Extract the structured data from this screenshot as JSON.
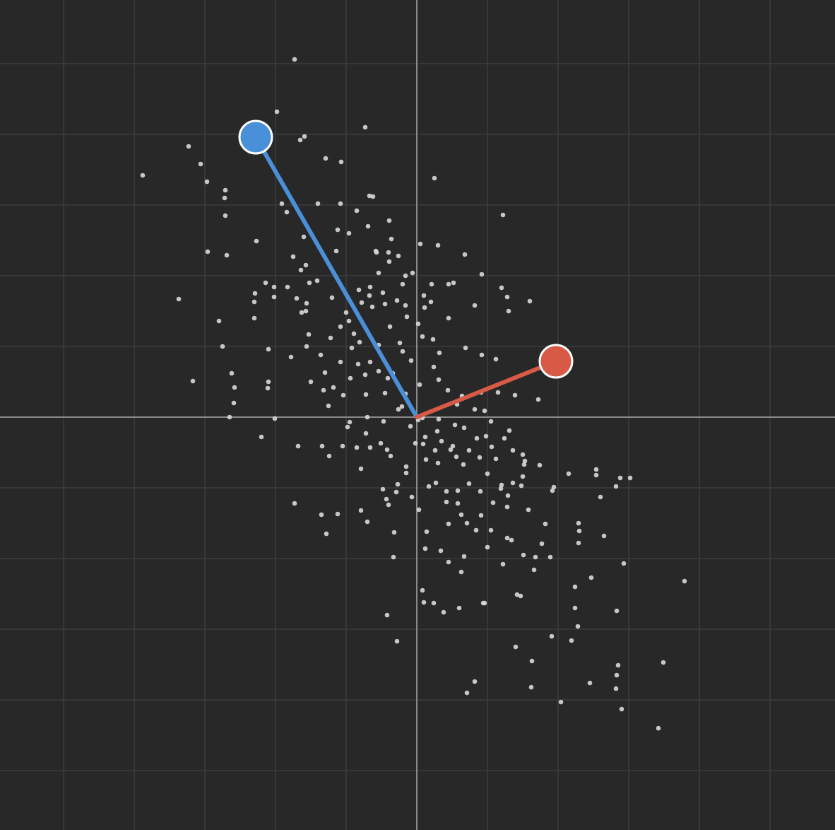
{
  "canvas": {
    "background": "#282828",
    "grid_color": "#3c3c3c",
    "axis_color": "#8a8a8a",
    "point_color": "#d8d8d8"
  },
  "chart_data": {
    "type": "scatter",
    "title": "",
    "xlabel": "",
    "ylabel": "",
    "xlim": [
      -5.9,
      5.92
    ],
    "ylim": [
      -5.84,
      5.9
    ],
    "grid": true,
    "grid_step": 1,
    "axes_through_origin": true,
    "vectors": [
      {
        "color": "#4a90d9",
        "tip": [
          -2.28,
          3.96
        ]
      },
      {
        "color": "#d65a45",
        "tip": [
          1.97,
          0.79
        ]
      }
    ],
    "points": [
      [
        -1.73,
        5.06
      ],
      [
        -1.98,
        4.32
      ],
      [
        -0.73,
        4.1
      ],
      [
        -1.65,
        3.92
      ],
      [
        -1.59,
        3.97
      ],
      [
        -3.23,
        3.83
      ],
      [
        -1.29,
        3.66
      ],
      [
        -1.07,
        3.61
      ],
      [
        -3.06,
        3.58
      ],
      [
        -3.88,
        3.42
      ],
      [
        0.25,
        3.38
      ],
      [
        -2.97,
        3.33
      ],
      [
        -2.71,
        3.21
      ],
      [
        -2.72,
        3.1
      ],
      [
        -0.62,
        3.12
      ],
      [
        -0.67,
        3.13
      ],
      [
        -1.91,
        3.02
      ],
      [
        -1.4,
        3.02
      ],
      [
        -1.08,
        3.02
      ],
      [
        -0.85,
        2.92
      ],
      [
        -2.71,
        2.85
      ],
      [
        -1.84,
        2.9
      ],
      [
        1.22,
        2.86
      ],
      [
        -0.39,
        2.78
      ],
      [
        -0.69,
        2.7
      ],
      [
        -1.12,
        2.65
      ],
      [
        -0.96,
        2.6
      ],
      [
        -1.6,
        2.55
      ],
      [
        -2.27,
        2.49
      ],
      [
        -0.36,
        2.52
      ],
      [
        0.05,
        2.45
      ],
      [
        0.3,
        2.43
      ],
      [
        -0.57,
        2.33
      ],
      [
        -2.96,
        2.34
      ],
      [
        -2.69,
        2.29
      ],
      [
        -1.14,
        2.35
      ],
      [
        -0.58,
        2.35
      ],
      [
        -0.4,
        2.33
      ],
      [
        -0.26,
        2.28
      ],
      [
        0.68,
        2.3
      ],
      [
        -1.75,
        2.27
      ],
      [
        -0.39,
        2.2
      ],
      [
        -1.57,
        2.15
      ],
      [
        -1.64,
        2.08
      ],
      [
        -0.54,
        2.04
      ],
      [
        -0.16,
        2.0
      ],
      [
        0.92,
        2.02
      ],
      [
        -0.06,
        2.04
      ],
      [
        -1.41,
        1.93
      ],
      [
        -1.83,
        1.84
      ],
      [
        -2.14,
        1.9
      ],
      [
        -1.52,
        1.9
      ],
      [
        -0.2,
        1.88
      ],
      [
        0.21,
        1.88
      ],
      [
        -2.02,
        1.84
      ],
      [
        -0.66,
        1.84
      ],
      [
        -0.82,
        1.8
      ],
      [
        0.45,
        1.88
      ],
      [
        0.52,
        1.9
      ],
      [
        1.2,
        1.83
      ],
      [
        -2.29,
        1.75
      ],
      [
        -0.48,
        1.76
      ],
      [
        -2.02,
        1.7
      ],
      [
        -0.67,
        1.72
      ],
      [
        -1.2,
        1.69
      ],
      [
        -0.28,
        1.65
      ],
      [
        -0.16,
        1.58
      ],
      [
        1.28,
        1.7
      ],
      [
        -2.3,
        1.63
      ],
      [
        -1.7,
        1.68
      ],
      [
        -1.56,
        1.61
      ],
      [
        -0.78,
        1.62
      ],
      [
        0.2,
        1.63
      ],
      [
        0.1,
        1.72
      ],
      [
        -0.63,
        1.56
      ],
      [
        -0.45,
        1.6
      ],
      [
        0.11,
        1.55
      ],
      [
        1.6,
        1.64
      ],
      [
        -1.57,
        1.5
      ],
      [
        -1.0,
        1.48
      ],
      [
        -0.14,
        1.42
      ],
      [
        0.45,
        1.4
      ],
      [
        1.3,
        1.5
      ],
      [
        -3.37,
        1.67
      ],
      [
        -2.3,
        1.4
      ],
      [
        -1.63,
        1.48
      ],
      [
        -0.96,
        1.36
      ],
      [
        0.02,
        1.32
      ],
      [
        0.82,
        1.58
      ],
      [
        -2.8,
        1.36
      ],
      [
        -1.08,
        1.28
      ],
      [
        -0.38,
        1.28
      ],
      [
        -1.53,
        1.17
      ],
      [
        -0.89,
        1.18
      ],
      [
        0.08,
        1.14
      ],
      [
        -1.22,
        1.12
      ],
      [
        -0.81,
        1.06
      ],
      [
        -0.24,
        1.05
      ],
      [
        0.23,
        1.1
      ],
      [
        -1.56,
        1.0
      ],
      [
        -0.54,
        1.02
      ],
      [
        0.69,
        0.98
      ],
      [
        -2.1,
        0.96
      ],
      [
        -0.92,
        0.98
      ],
      [
        -0.2,
        0.93
      ],
      [
        -1.36,
        0.88
      ],
      [
        0.32,
        0.91
      ],
      [
        -2.75,
        1.0
      ],
      [
        -1.78,
        0.85
      ],
      [
        -1.08,
        0.78
      ],
      [
        -0.66,
        0.78
      ],
      [
        -0.08,
        0.8
      ],
      [
        0.24,
        0.71
      ],
      [
        -0.83,
        0.75
      ],
      [
        0.92,
        0.88
      ],
      [
        1.12,
        0.82
      ],
      [
        -1.3,
        0.63
      ],
      [
        -0.54,
        0.65
      ],
      [
        -0.34,
        0.62
      ],
      [
        -0.94,
        0.55
      ],
      [
        -0.73,
        0.6
      ],
      [
        -2.62,
        0.62
      ],
      [
        -2.1,
        0.5
      ],
      [
        0.31,
        0.53
      ],
      [
        -1.5,
        0.5
      ],
      [
        -1.18,
        0.42
      ],
      [
        0.04,
        0.46
      ],
      [
        1.72,
        0.25
      ],
      [
        -2.58,
        0.42
      ],
      [
        -2.11,
        0.41
      ],
      [
        -1.32,
        0.38
      ],
      [
        0.44,
        0.38
      ],
      [
        0.91,
        0.35
      ],
      [
        -0.72,
        0.32
      ],
      [
        -0.45,
        0.34
      ],
      [
        -0.16,
        0.33
      ],
      [
        0.64,
        0.3
      ],
      [
        1.39,
        0.31
      ],
      [
        -3.17,
        0.51
      ],
      [
        -0.41,
        0.55
      ],
      [
        -2.59,
        0.2
      ],
      [
        -1.25,
        0.16
      ],
      [
        -0.21,
        0.15
      ],
      [
        0.57,
        0.18
      ],
      [
        0.82,
        0.11
      ],
      [
        1.15,
        0.35
      ],
      [
        -1.04,
        0.31
      ],
      [
        -2.65,
        0.0
      ],
      [
        -2.01,
        -0.02
      ],
      [
        -0.7,
        0.0
      ],
      [
        -0.26,
        0.11
      ],
      [
        0.08,
        -0.01
      ],
      [
        0.31,
        -0.03
      ],
      [
        0.96,
        0.09
      ],
      [
        -0.95,
        -0.07
      ],
      [
        -0.47,
        -0.06
      ],
      [
        0.02,
        -0.04
      ],
      [
        0.54,
        -0.11
      ],
      [
        -0.98,
        -0.14
      ],
      [
        1.05,
        -0.06
      ],
      [
        -0.09,
        -0.13
      ],
      [
        0.29,
        -0.2
      ],
      [
        0.67,
        -0.15
      ],
      [
        -0.72,
        -0.23
      ],
      [
        0.12,
        -0.28
      ],
      [
        0.85,
        -0.3
      ],
      [
        0.98,
        -0.27
      ],
      [
        1.31,
        -0.19
      ],
      [
        -2.2,
        -0.28
      ],
      [
        -1.05,
        -0.41
      ],
      [
        -0.51,
        -0.37
      ],
      [
        0.09,
        -0.38
      ],
      [
        0.51,
        -0.41
      ],
      [
        1.06,
        -0.42
      ],
      [
        -1.34,
        -0.41
      ],
      [
        -0.42,
        -0.46
      ],
      [
        -0.02,
        -0.37
      ],
      [
        0.35,
        -0.34
      ],
      [
        1.24,
        -0.3
      ],
      [
        -1.68,
        -0.41
      ],
      [
        -0.85,
        -0.43
      ],
      [
        -0.66,
        -0.43
      ],
      [
        0.26,
        -0.47
      ],
      [
        0.48,
        -0.46
      ],
      [
        0.74,
        -0.47
      ],
      [
        1.36,
        -0.47
      ],
      [
        1.5,
        -0.53
      ],
      [
        -1.24,
        -0.55
      ],
      [
        -0.37,
        -0.55
      ],
      [
        0.13,
        -0.6
      ],
      [
        0.56,
        -0.56
      ],
      [
        0.89,
        -0.57
      ],
      [
        1.53,
        -0.62
      ],
      [
        1.74,
        -0.68
      ],
      [
        -0.15,
        -0.7
      ],
      [
        0.3,
        -0.65
      ],
      [
        0.66,
        -0.67
      ],
      [
        1.12,
        -0.59
      ],
      [
        1.52,
        -0.67
      ],
      [
        -0.79,
        -0.73
      ],
      [
        -0.15,
        -0.79
      ],
      [
        1.0,
        -0.8
      ],
      [
        1.5,
        -0.84
      ],
      [
        2.15,
        -0.8
      ],
      [
        2.54,
        -0.74
      ],
      [
        2.54,
        -0.82
      ],
      [
        2.88,
        -0.86
      ],
      [
        3.02,
        -0.86
      ],
      [
        -0.27,
        -0.95
      ],
      [
        0.27,
        -0.93
      ],
      [
        0.74,
        -0.94
      ],
      [
        1.48,
        -0.97
      ],
      [
        2.82,
        -0.98
      ],
      [
        -0.48,
        -1.02
      ],
      [
        0.17,
        -0.98
      ],
      [
        0.42,
        -1.05
      ],
      [
        1.2,
        -0.96
      ],
      [
        1.36,
        -0.93
      ],
      [
        1.94,
        -0.99
      ],
      [
        1.19,
        -1.01
      ],
      [
        -0.29,
        -1.06
      ],
      [
        -0.07,
        -1.13
      ],
      [
        0.58,
        -1.04
      ],
      [
        0.9,
        -1.05
      ],
      [
        1.29,
        -1.11
      ],
      [
        1.92,
        -1.04
      ],
      [
        2.6,
        -1.13
      ],
      [
        -0.43,
        -1.16
      ],
      [
        0.42,
        -1.2
      ],
      [
        0.58,
        -1.22
      ],
      [
        1.08,
        -1.21
      ],
      [
        1.58,
        -1.31
      ],
      [
        -1.35,
        -1.38
      ],
      [
        -1.12,
        -1.37
      ],
      [
        -0.4,
        -1.24
      ],
      [
        -0.79,
        -1.32
      ],
      [
        0.03,
        -1.31
      ],
      [
        0.63,
        -1.38
      ],
      [
        0.91,
        -1.39
      ],
      [
        1.28,
        -1.27
      ],
      [
        -1.73,
        -1.22
      ],
      [
        -0.7,
        -1.48
      ],
      [
        0.45,
        -1.51
      ],
      [
        0.71,
        -1.5
      ],
      [
        1.82,
        -1.51
      ],
      [
        2.29,
        -1.5
      ],
      [
        2.3,
        -1.61
      ],
      [
        -1.28,
        -1.65
      ],
      [
        -0.32,
        -1.63
      ],
      [
        0.14,
        -1.62
      ],
      [
        0.84,
        -1.6
      ],
      [
        1.05,
        -1.6
      ],
      [
        1.28,
        -1.71
      ],
      [
        2.65,
        -1.68
      ],
      [
        2.29,
        -1.78
      ],
      [
        0.12,
        -1.86
      ],
      [
        0.34,
        -1.89
      ],
      [
        1.0,
        -1.84
      ],
      [
        1.34,
        -1.74
      ],
      [
        1.77,
        -1.79
      ],
      [
        -0.33,
        -1.98
      ],
      [
        0.45,
        -2.05
      ],
      [
        0.67,
        -1.97
      ],
      [
        1.51,
        -1.95
      ],
      [
        1.68,
        -1.98
      ],
      [
        1.89,
        -1.98
      ],
      [
        2.93,
        -2.07
      ],
      [
        1.22,
        -2.08
      ],
      [
        0.63,
        -2.19
      ],
      [
        1.66,
        -2.16
      ],
      [
        2.24,
        -2.4
      ],
      [
        2.47,
        -2.27
      ],
      [
        3.79,
        -2.32
      ],
      [
        0.08,
        -2.45
      ],
      [
        0.1,
        -2.62
      ],
      [
        1.42,
        -2.51
      ],
      [
        1.47,
        -2.53
      ],
      [
        0.24,
        -2.63
      ],
      [
        0.6,
        -2.7
      ],
      [
        2.24,
        -2.7
      ],
      [
        0.38,
        -2.76
      ],
      [
        0.94,
        -2.63
      ],
      [
        0.96,
        -2.63
      ],
      [
        -0.42,
        -2.8
      ],
      [
        2.83,
        -2.74
      ],
      [
        2.28,
        -2.96
      ],
      [
        -0.28,
        -3.17
      ],
      [
        1.91,
        -3.1
      ],
      [
        2.19,
        -3.16
      ],
      [
        1.4,
        -3.25
      ],
      [
        1.63,
        -3.45
      ],
      [
        2.85,
        -3.51
      ],
      [
        3.49,
        -3.47
      ],
      [
        2.83,
        -3.65
      ],
      [
        0.82,
        -3.74
      ],
      [
        2.45,
        -3.76
      ],
      [
        1.62,
        -3.82
      ],
      [
        2.82,
        -3.84
      ],
      [
        0.71,
        -3.9
      ],
      [
        2.04,
        -4.03
      ],
      [
        2.9,
        -4.13
      ],
      [
        3.42,
        -4.4
      ]
    ]
  }
}
